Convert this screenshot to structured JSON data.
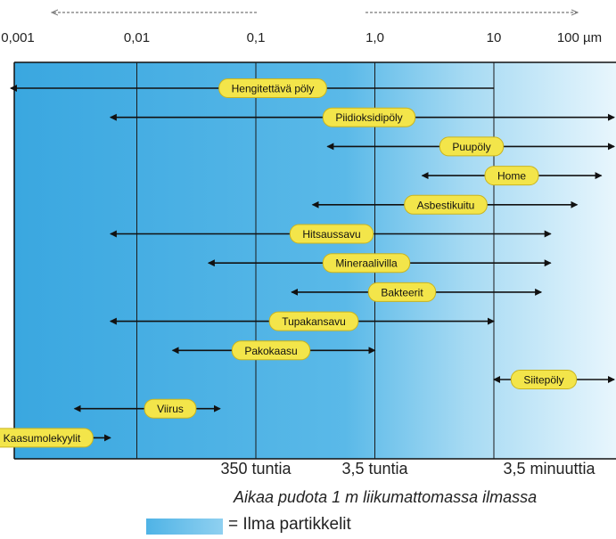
{
  "scale": {
    "ticks": [
      "0,001",
      "0,01",
      "0,1",
      "1,0",
      "10",
      "100 µm"
    ],
    "tick_values": [
      0.001,
      0.01,
      0.1,
      1.0,
      10,
      100
    ]
  },
  "time_labels": [
    {
      "text": "350 tuntia",
      "value": 0.1
    },
    {
      "text": "3,5 tuntia",
      "value": 1.0
    },
    {
      "text": "3,5 minuuttia",
      "value": 10
    }
  ],
  "caption": "Aikaa pudota 1 m liikumattomassa ilmassa",
  "legend": {
    "label": "= Ilma partikkelit",
    "color": "#4fb3e6"
  },
  "chart_data": {
    "type": "range",
    "scale": "log",
    "unit": "µm",
    "x_range": [
      0.001,
      100
    ],
    "items": [
      {
        "label": "Hengitettävä pöly",
        "min": 0.0007,
        "max": 10,
        "arrow_left": true,
        "arrow_right": false
      },
      {
        "label": "Piidioksidipöly",
        "min": 0.006,
        "max": 100,
        "arrow_left": true,
        "arrow_right": true
      },
      {
        "label": "Puupöly",
        "min": 0.4,
        "max": 100,
        "arrow_left": true,
        "arrow_right": true
      },
      {
        "label": "Home",
        "min": 2.5,
        "max": 80,
        "arrow_left": true,
        "arrow_right": true
      },
      {
        "label": "Asbestikuitu",
        "min": 0.3,
        "max": 50,
        "arrow_left": true,
        "arrow_right": true
      },
      {
        "label": "Hitsaussavu",
        "min": 0.006,
        "max": 30,
        "arrow_left": true,
        "arrow_right": true
      },
      {
        "label": "Mineraalivilla",
        "min": 0.04,
        "max": 30,
        "arrow_left": true,
        "arrow_right": true
      },
      {
        "label": "Bakteerit",
        "min": 0.2,
        "max": 25,
        "arrow_left": true,
        "arrow_right": true
      },
      {
        "label": "Tupakansavu",
        "min": 0.006,
        "max": 10,
        "arrow_left": true,
        "arrow_right": true
      },
      {
        "label": "Pakokaasu",
        "min": 0.02,
        "max": 1.0,
        "arrow_left": true,
        "arrow_right": true
      },
      {
        "label": "Siitepöly",
        "min": 10,
        "max": 100,
        "arrow_left": true,
        "arrow_right": true
      },
      {
        "label": "Viirus",
        "min": 0.003,
        "max": 0.05,
        "arrow_left": true,
        "arrow_right": true
      },
      {
        "label": "Kaasumolekyylit",
        "min": 0.0007,
        "max": 0.006,
        "arrow_left": false,
        "arrow_right": true
      }
    ]
  }
}
